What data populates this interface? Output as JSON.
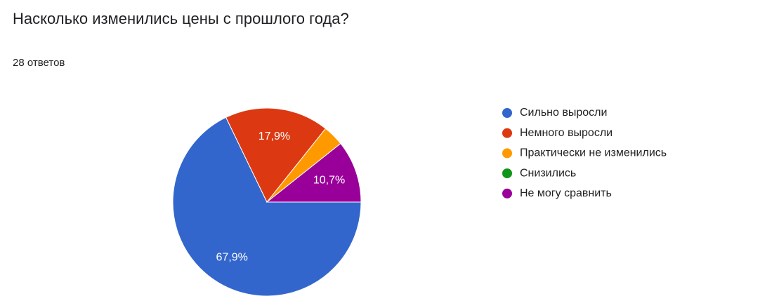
{
  "chart_data": {
    "type": "pie",
    "title": "Насколько изменились цены с прошлого года?",
    "subtitle": "28 ответов",
    "categories": [
      "Сильно выросли",
      "Немного выросли",
      "Практически не изменились",
      "Снизились",
      "Не могу сравнить"
    ],
    "values": [
      67.9,
      17.9,
      3.6,
      0,
      10.7
    ],
    "value_labels": [
      "67,9%",
      "17,9%",
      null,
      null,
      "10,7%"
    ],
    "colors": [
      "#3366cc",
      "#dc3912",
      "#ff9900",
      "#109618",
      "#990099"
    ]
  }
}
